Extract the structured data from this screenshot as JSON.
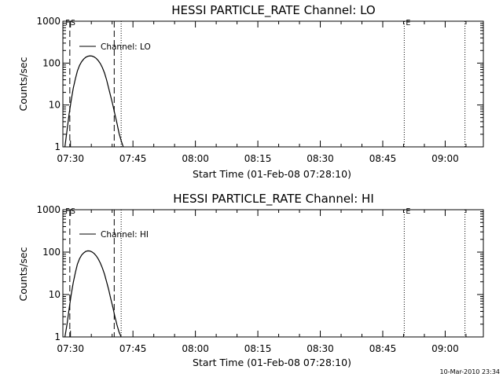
{
  "chart_data": [
    {
      "type": "line",
      "title": "HESSI PARTICLE_RATE Channel: LO",
      "xlabel": "Start Time (01-Feb-08 07:28:10)",
      "ylabel": "Counts/sec",
      "yscale": "log",
      "ylim": [
        1,
        1000
      ],
      "xlim": [
        "07:28:10",
        "09:09:10"
      ],
      "xticks": [
        "07:30",
        "07:45",
        "08:00",
        "08:15",
        "08:30",
        "08:45",
        "09:00"
      ],
      "yticks": [
        "1",
        "10",
        "100",
        "1000"
      ],
      "grid": false,
      "legend_position": "top-left",
      "markers": [
        {
          "label": "F",
          "x": "07:28:35"
        },
        {
          "label": "S",
          "x": "07:29:50"
        }
      ],
      "end_marker": {
        "label": "E",
        "x": "08:50:10"
      },
      "dashed_lines": [
        "07:29:50",
        "07:40:30"
      ],
      "dotted_lines": [
        "07:42:10",
        "08:50:10",
        "09:04:45"
      ],
      "series": [
        {
          "name": "Channel: LO",
          "x": [
            "07:28:40",
            "07:29:10",
            "07:29:40",
            "07:30:10",
            "07:30:40",
            "07:31:10",
            "07:31:40",
            "07:32:10",
            "07:32:40",
            "07:33:10",
            "07:33:40",
            "07:34:10",
            "07:34:40",
            "07:35:10",
            "07:35:40",
            "07:36:10",
            "07:36:40",
            "07:37:10",
            "07:37:40",
            "07:38:10",
            "07:38:40",
            "07:39:10",
            "07:39:40",
            "07:40:10",
            "07:40:40",
            "07:41:10",
            "07:41:40",
            "07:42:10",
            "07:42:40"
          ],
          "values": [
            1,
            2.5,
            6,
            13,
            25,
            42,
            65,
            88,
            108,
            125,
            138,
            146,
            149,
            147,
            141,
            130,
            115,
            97,
            78,
            58,
            40,
            25,
            16,
            10,
            6,
            3.6,
            2.1,
            1.4,
            1
          ]
        }
      ]
    },
    {
      "type": "line",
      "title": "HESSI PARTICLE_RATE Channel: HI",
      "xlabel": "Start Time (01-Feb-08 07:28:10)",
      "ylabel": "Counts/sec",
      "yscale": "log",
      "ylim": [
        1,
        1000
      ],
      "xlim": [
        "07:28:10",
        "09:09:10"
      ],
      "xticks": [
        "07:30",
        "07:45",
        "08:00",
        "08:15",
        "08:30",
        "08:45",
        "09:00"
      ],
      "yticks": [
        "1",
        "10",
        "100",
        "1000"
      ],
      "grid": false,
      "legend_position": "top-left",
      "markers": [
        {
          "label": "F",
          "x": "07:28:35"
        },
        {
          "label": "S",
          "x": "07:29:50"
        }
      ],
      "end_marker": {
        "label": "E",
        "x": "08:50:10"
      },
      "dashed_lines": [
        "07:29:50",
        "07:40:30"
      ],
      "dotted_lines": [
        "07:42:10",
        "08:50:10",
        "09:04:45"
      ],
      "series": [
        {
          "name": "Channel: HI",
          "x": [
            "07:28:40",
            "07:29:10",
            "07:29:40",
            "07:30:10",
            "07:30:40",
            "07:31:10",
            "07:31:40",
            "07:32:10",
            "07:32:40",
            "07:33:10",
            "07:33:40",
            "07:34:10",
            "07:34:40",
            "07:35:10",
            "07:35:40",
            "07:36:10",
            "07:36:40",
            "07:37:10",
            "07:37:40",
            "07:38:10",
            "07:38:40",
            "07:39:10",
            "07:39:40",
            "07:40:10",
            "07:40:40",
            "07:41:10",
            "07:41:40",
            "07:42:10"
          ],
          "values": [
            1,
            2,
            4.5,
            10,
            19,
            33,
            52,
            70,
            85,
            96,
            104,
            107,
            106,
            101,
            93,
            82,
            69,
            55,
            42,
            30,
            20,
            13,
            8,
            5,
            3,
            1.9,
            1.3,
            1
          ]
        }
      ]
    }
  ],
  "timestamp": "10-Mar-2010 23:34"
}
